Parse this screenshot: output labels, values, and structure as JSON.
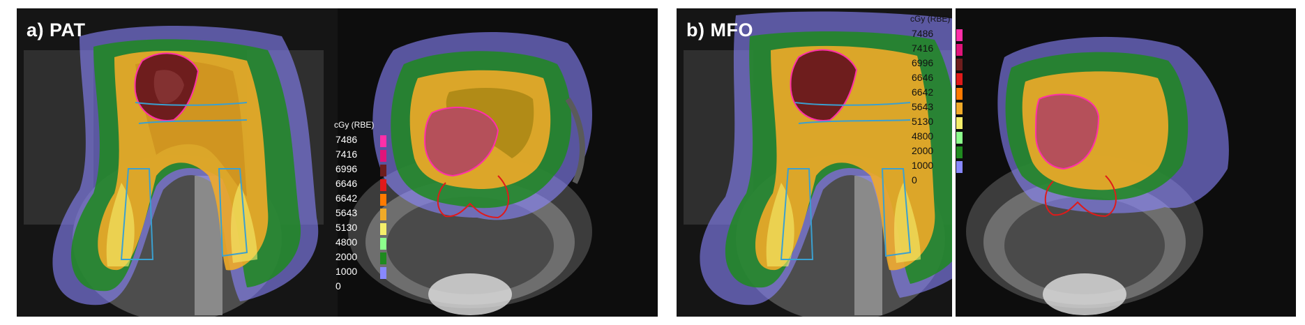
{
  "panels": [
    {
      "label": "a) PAT",
      "legend": {
        "title": "cGy (RBE)",
        "entries": [
          {
            "value": "7486",
            "color": "#ff2fa8"
          },
          {
            "value": "7416",
            "color": "#e0147a"
          },
          {
            "value": "6996",
            "color": "#6e1d1d"
          },
          {
            "value": "6646",
            "color": "#e01a1a"
          },
          {
            "value": "6642",
            "color": "#ff7a00"
          },
          {
            "value": "5643",
            "color": "#f0aa28"
          },
          {
            "value": "5130",
            "color": "#f5ee6a"
          },
          {
            "value": "4800",
            "color": "#8cff8c"
          },
          {
            "value": "2000",
            "color": "#1f8a1f"
          },
          {
            "value": "1000",
            "color": "#8888ff"
          },
          {
            "value": "0",
            "color": ""
          }
        ]
      }
    },
    {
      "label": "b) MFO",
      "legend": {
        "title": "cGy (RBE)",
        "entries": [
          {
            "value": "7486",
            "color": "#ff2fa8"
          },
          {
            "value": "7416",
            "color": "#e0147a"
          },
          {
            "value": "6996",
            "color": "#6e1d1d"
          },
          {
            "value": "6646",
            "color": "#e01a1a"
          },
          {
            "value": "6642",
            "color": "#ff7a00"
          },
          {
            "value": "5643",
            "color": "#f0aa28"
          },
          {
            "value": "5130",
            "color": "#f5ee6a"
          },
          {
            "value": "4800",
            "color": "#8cff8c"
          },
          {
            "value": "2000",
            "color": "#1f8a1f"
          },
          {
            "value": "1000",
            "color": "#8888ff"
          },
          {
            "value": "0",
            "color": ""
          }
        ]
      }
    }
  ]
}
